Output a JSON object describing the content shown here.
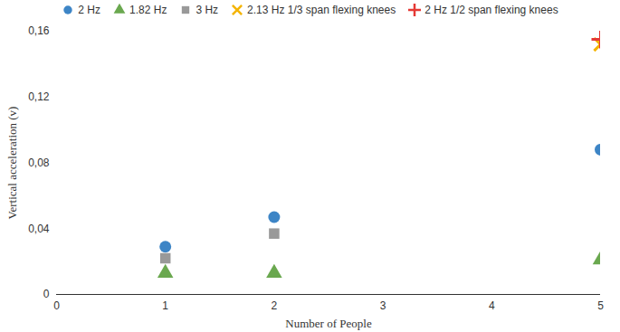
{
  "chart_data": {
    "type": "scatter",
    "x_label": "Number of People",
    "y_label": "Vertical acceleration (v)",
    "x": [
      1,
      2,
      5
    ],
    "series": [
      {
        "name": "2 Hz",
        "color": "#3d85c6",
        "marker": "circle",
        "values": [
          0.029,
          0.047,
          0.088
        ]
      },
      {
        "name": "1.82 Hz",
        "color": "#6aa84f",
        "marker": "triangle",
        "values": [
          0.013,
          0.013,
          0.021
        ]
      },
      {
        "name": "3 Hz",
        "color": "#999999",
        "marker": "square",
        "values": [
          0.022,
          0.037,
          null
        ]
      },
      {
        "name": "2.13 Hz 1/3 span flexing knees",
        "color": "#f4b400",
        "marker": "times",
        "values": [
          null,
          null,
          0.152
        ]
      },
      {
        "name": "2 Hz 1/2 span flexing knees",
        "color": "#e53935",
        "marker": "plus",
        "values": [
          null,
          null,
          0.155
        ]
      }
    ],
    "xlim": [
      0,
      5
    ],
    "xticks": [
      0,
      1,
      2,
      3,
      4,
      5
    ],
    "ylim": [
      0,
      0.16
    ],
    "yticks": [
      0,
      {
        "value": 0.04,
        "label": "0,04"
      },
      {
        "value": 0.08,
        "label": "0,08"
      },
      {
        "value": 0.12,
        "label": "0,12"
      },
      {
        "value": 0.16,
        "label": "0,16"
      }
    ],
    "grid": false,
    "legend": "top"
  }
}
